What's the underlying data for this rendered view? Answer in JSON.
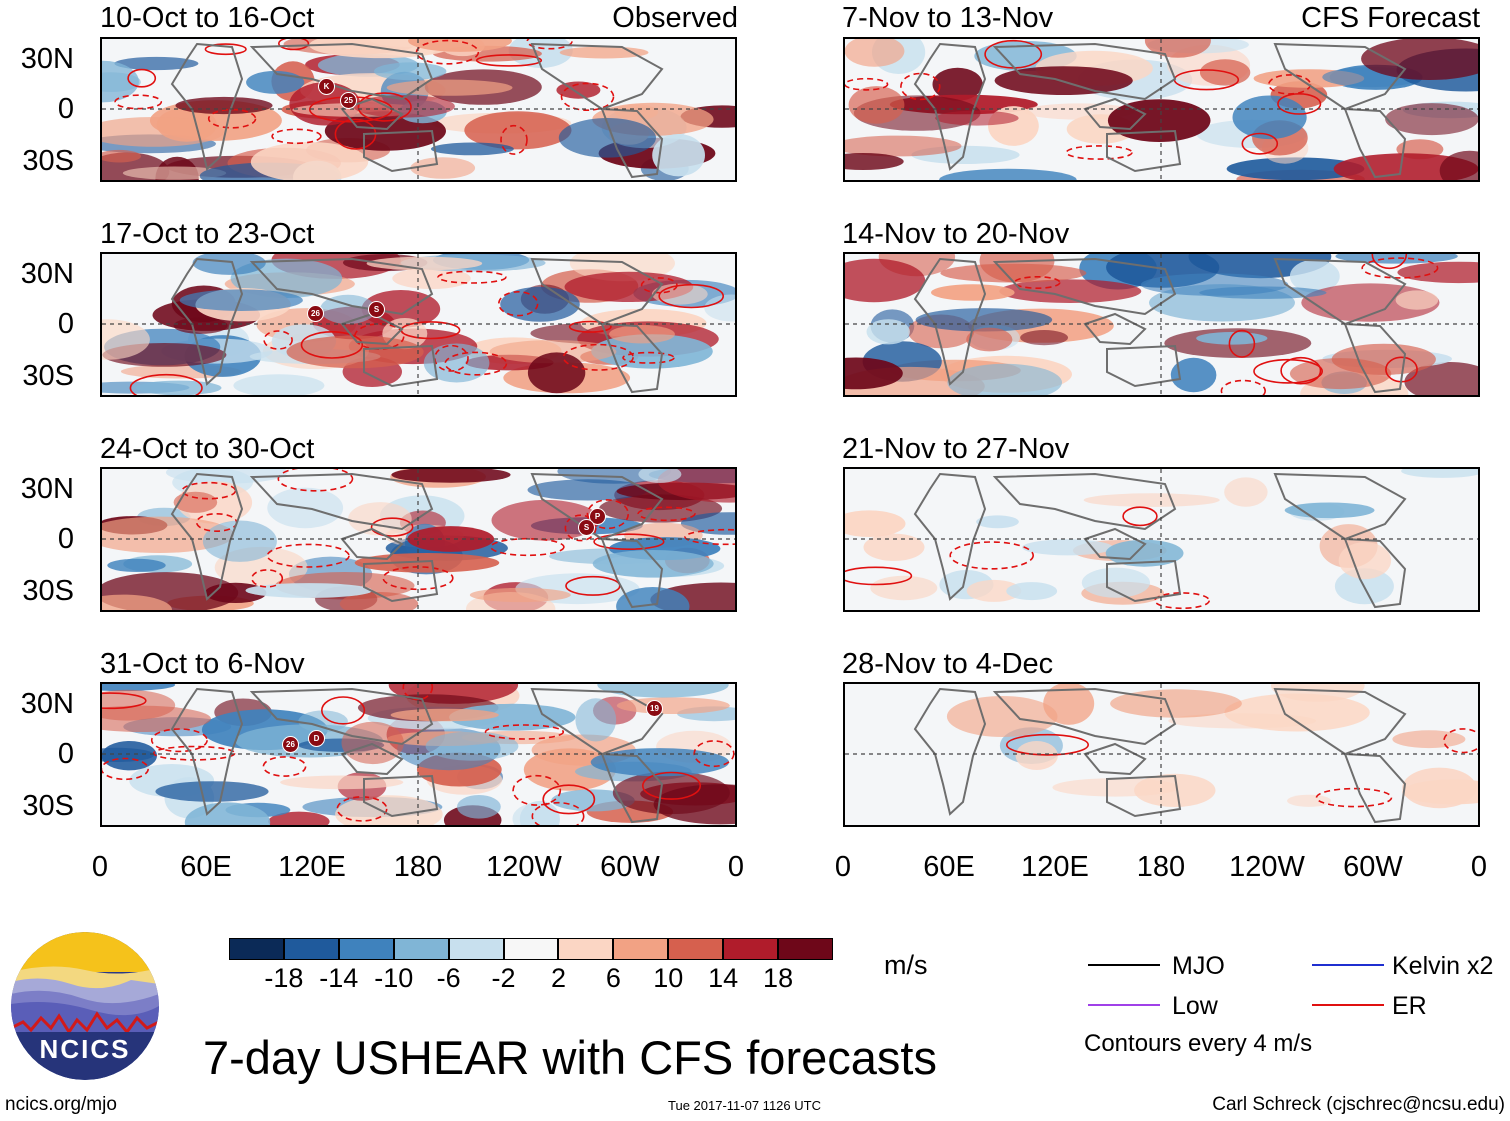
{
  "panels": {
    "observed_label": "Observed",
    "forecast_label": "CFS Forecast",
    "left_titles": [
      "10-Oct to 16-Oct",
      "17-Oct to 23-Oct",
      "24-Oct to 30-Oct",
      "31-Oct to 6-Nov"
    ],
    "right_titles": [
      "7-Nov to 13-Nov",
      "14-Nov to 20-Nov",
      "21-Nov to 27-Nov",
      "28-Nov to 4-Dec"
    ]
  },
  "axes": {
    "lat_labels": [
      "30N",
      "0",
      "30S"
    ],
    "lon_labels": [
      "0",
      "60E",
      "120E",
      "180",
      "120W",
      "60W",
      "0"
    ]
  },
  "storm_markers": {
    "p1": [
      "K",
      "25"
    ],
    "p2": [
      "26",
      "S"
    ],
    "p3": [
      "P",
      "S"
    ],
    "p4": [
      "26",
      "D",
      "19"
    ]
  },
  "colorbar": {
    "colors": [
      "#0b2a57",
      "#1f5a9c",
      "#3f82bd",
      "#80b5d6",
      "#c8e0ee",
      "#f7f7f7",
      "#fbd6c4",
      "#f2a284",
      "#d6604e",
      "#b01c2b",
      "#6e0719"
    ],
    "labels": [
      "-18",
      "-14",
      "-10",
      "-6",
      "-2",
      "2",
      "6",
      "10",
      "14",
      "18"
    ],
    "units": "m/s"
  },
  "legend": {
    "items": [
      {
        "label": "MJO",
        "color": "#000000"
      },
      {
        "label": "Kelvin x2",
        "color": "#1f2fd0"
      },
      {
        "label": "Low",
        "color": "#a040e8"
      },
      {
        "label": "ER",
        "color": "#e01010"
      }
    ],
    "contours_note": "Contours every 4 m/s"
  },
  "footer": {
    "main_title": "7-day USHEAR with CFS forecasts",
    "site": "ncics.org/mjo",
    "timestamp": "Tue 2017-11-07 1126 UTC",
    "author": "Carl Schreck (cjschrec@ncsu.edu)",
    "logo_text": "NCICS"
  }
}
